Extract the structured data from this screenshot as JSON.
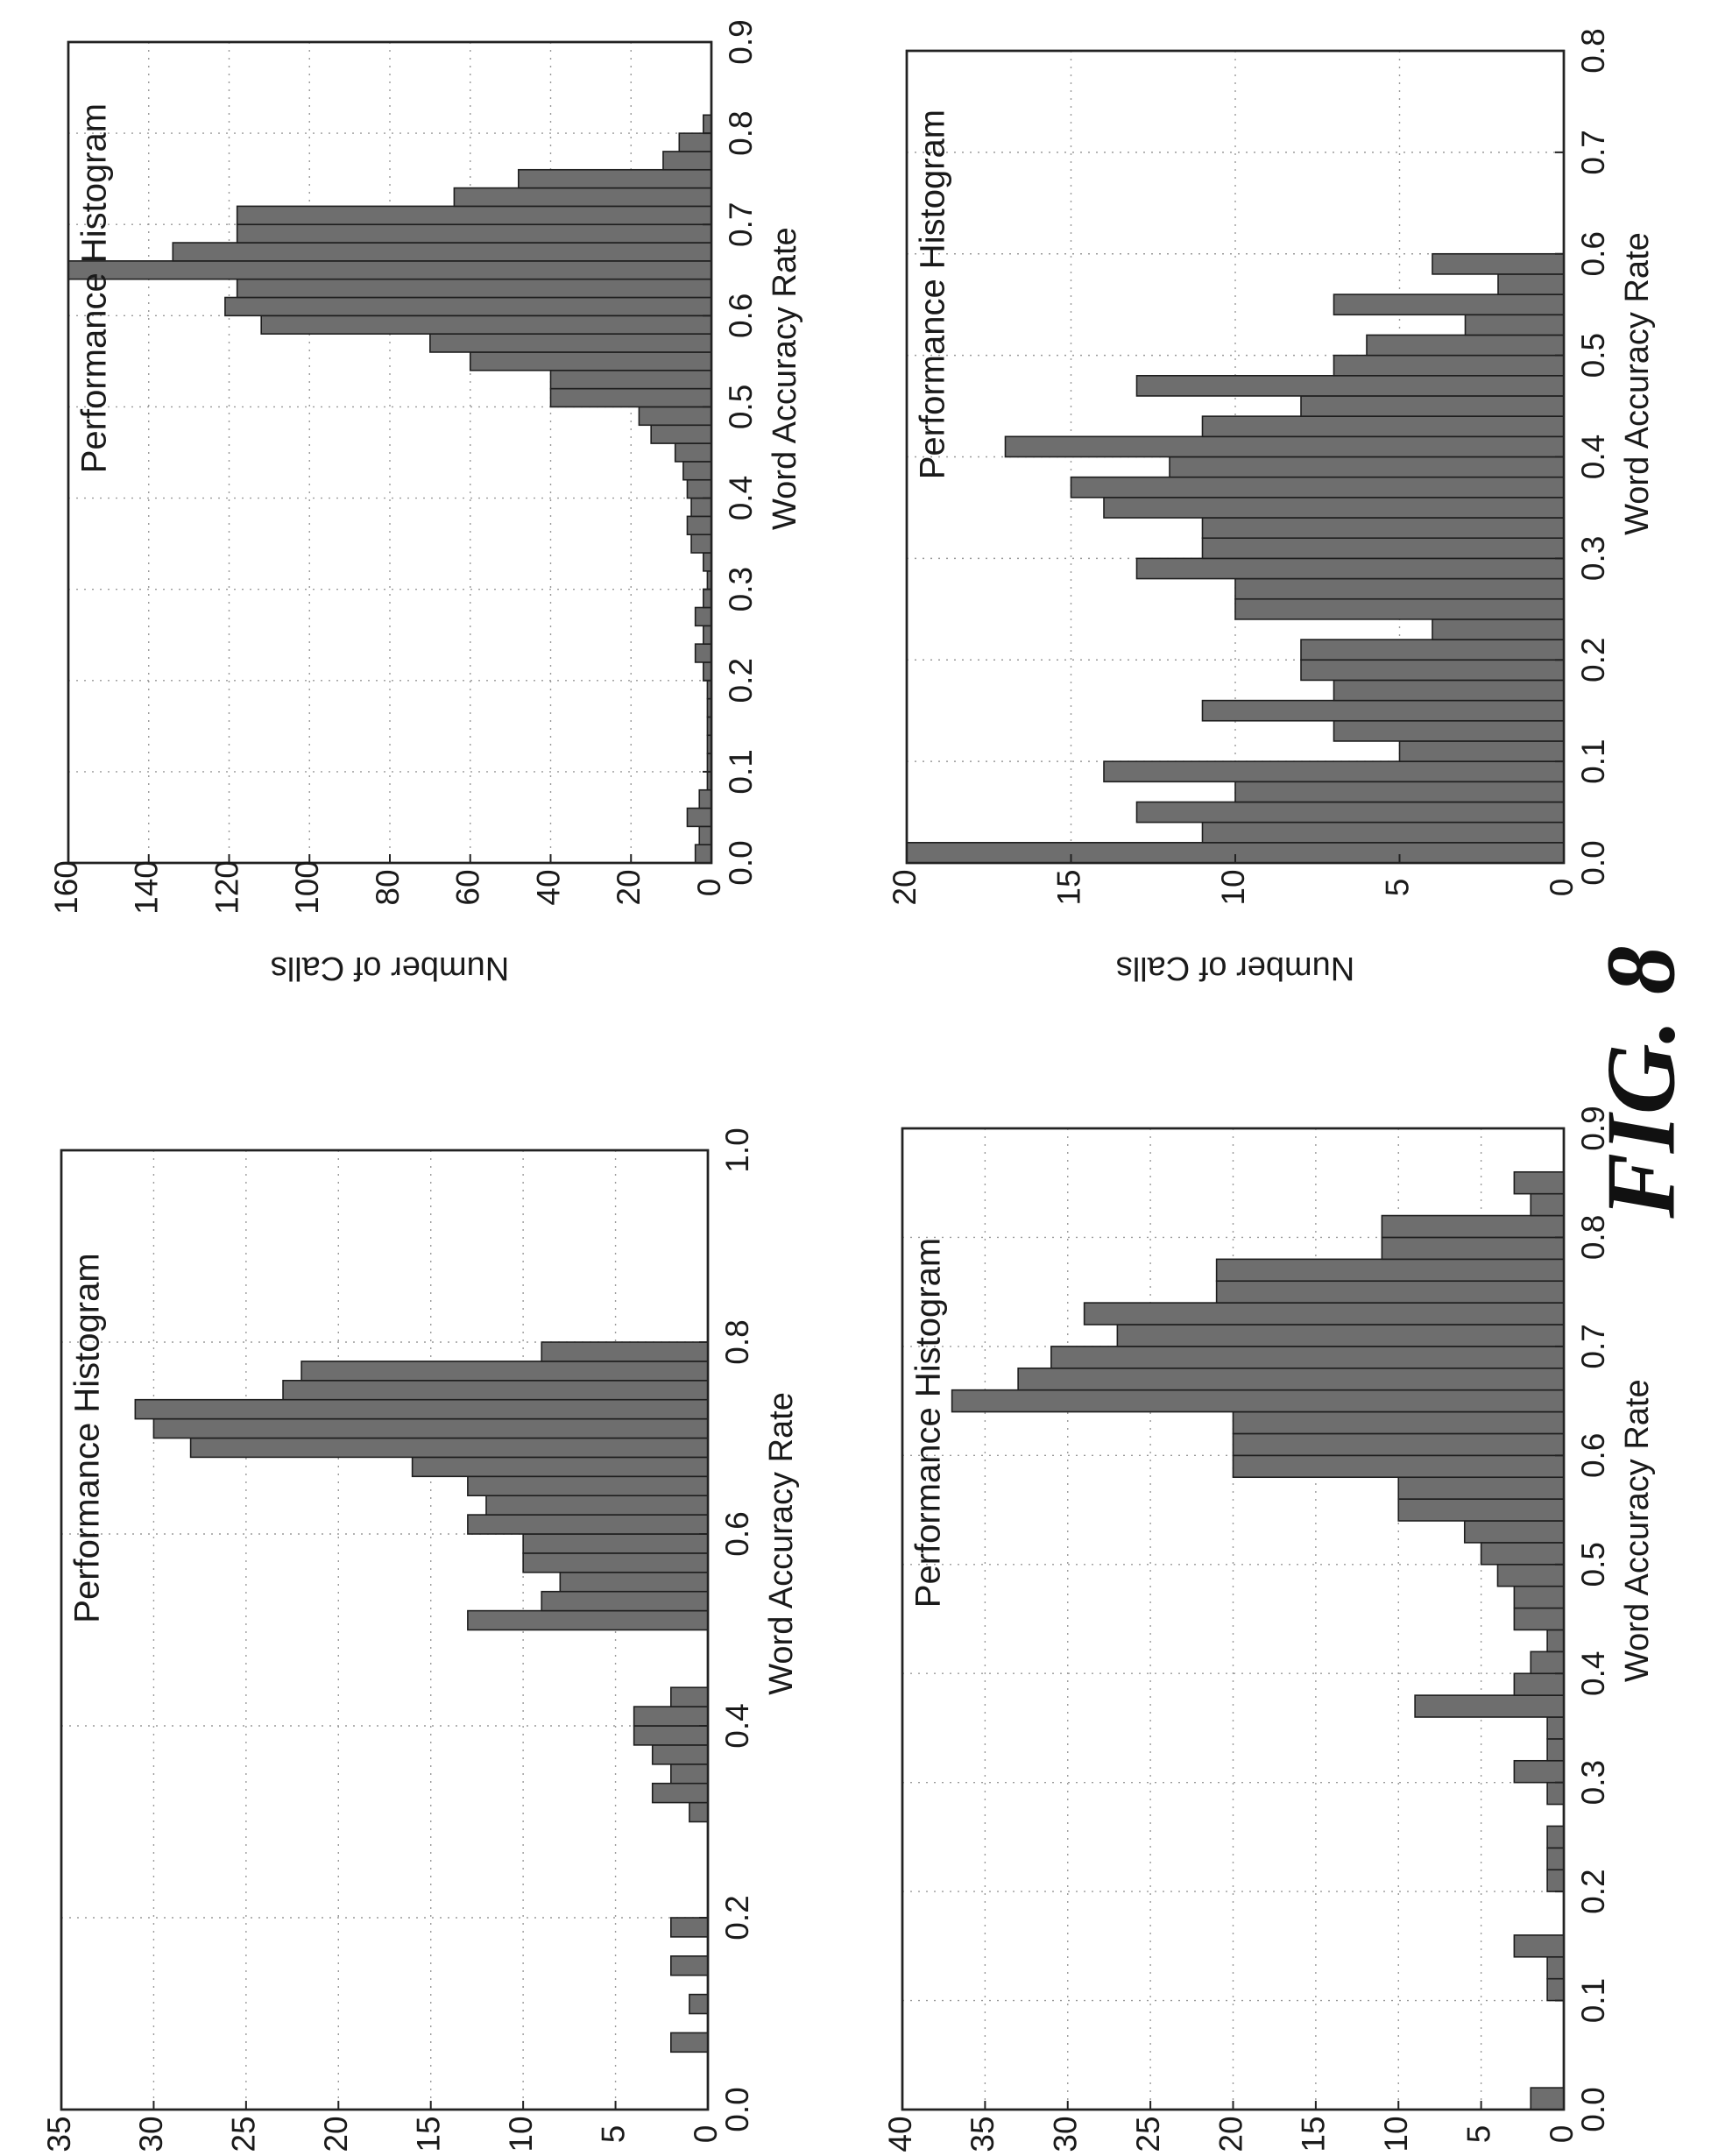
{
  "figure_label": "FIG. 8",
  "chart_data": [
    {
      "type": "bar",
      "title": "Performance Histogram",
      "xlabel": "Word Accuracy Rate",
      "ylabel": "Number of Calls",
      "xlim": [
        0.0,
        1.0
      ],
      "ylim": [
        0,
        35
      ],
      "xticks": [
        "0.0",
        "0.2",
        "0.4",
        "0.6",
        "0.8",
        "1.0"
      ],
      "yticks": [
        "0",
        "5",
        "10",
        "15",
        "20",
        "25",
        "30",
        "35"
      ],
      "xtick_values": [
        0.0,
        0.2,
        0.4,
        0.6,
        0.8,
        1.0
      ],
      "ytick_values": [
        0,
        5,
        10,
        15,
        20,
        25,
        30,
        35
      ],
      "grid": true,
      "bin_width": 0.02,
      "bin_starts": [
        0.06,
        0.08,
        0.1,
        0.12,
        0.14,
        0.16,
        0.18,
        0.2,
        0.22,
        0.24,
        0.26,
        0.28,
        0.3,
        0.32,
        0.34,
        0.36,
        0.38,
        0.4,
        0.42,
        0.44,
        0.46,
        0.48,
        0.5,
        0.52,
        0.54,
        0.56,
        0.58,
        0.6,
        0.62,
        0.64,
        0.66,
        0.68,
        0.7,
        0.72,
        0.74,
        0.76,
        0.78,
        0.8,
        0.82,
        0.84,
        0.86,
        0.88
      ],
      "values": [
        2,
        0,
        1,
        0,
        2,
        0,
        2,
        0,
        0,
        0,
        0,
        0,
        1,
        3,
        2,
        3,
        4,
        4,
        2,
        0,
        0,
        0,
        13,
        9,
        8,
        10,
        10,
        13,
        12,
        13,
        16,
        28,
        30,
        31,
        23,
        22,
        9,
        0,
        0,
        0,
        0,
        0
      ]
    },
    {
      "type": "bar",
      "title": "Performance Histogram",
      "xlabel": "Word Accuracy Rate",
      "ylabel": "Number of Calls",
      "xlim": [
        0.0,
        0.9
      ],
      "ylim": [
        0,
        160
      ],
      "xticks": [
        "0.0",
        "0.1",
        "0.2",
        "0.3",
        "0.4",
        "0.5",
        "0.6",
        "0.7",
        "0.8",
        "0.9"
      ],
      "yticks": [
        "0",
        "20",
        "40",
        "60",
        "80",
        "100",
        "120",
        "140",
        "160"
      ],
      "xtick_values": [
        0.0,
        0.1,
        0.2,
        0.3,
        0.4,
        0.5,
        0.6,
        0.7,
        0.8,
        0.9
      ],
      "ytick_values": [
        0,
        20,
        40,
        60,
        80,
        100,
        120,
        140,
        160
      ],
      "grid": true,
      "bin_width": 0.02,
      "bin_starts": [
        0.0,
        0.02,
        0.04,
        0.06,
        0.08,
        0.1,
        0.12,
        0.14,
        0.16,
        0.18,
        0.2,
        0.22,
        0.24,
        0.26,
        0.28,
        0.3,
        0.32,
        0.34,
        0.36,
        0.38,
        0.4,
        0.42,
        0.44,
        0.46,
        0.48,
        0.5,
        0.52,
        0.54,
        0.56,
        0.58,
        0.6,
        0.62,
        0.64,
        0.66,
        0.68,
        0.7,
        0.72,
        0.74,
        0.76,
        0.78,
        0.8,
        0.82,
        0.84,
        0.86,
        0.88
      ],
      "values": [
        4,
        3,
        6,
        3,
        1,
        1,
        1,
        1,
        1,
        1,
        2,
        4,
        2,
        4,
        2,
        1,
        2,
        5,
        6,
        5,
        6,
        7,
        9,
        15,
        18,
        40,
        40,
        60,
        70,
        112,
        121,
        118,
        160,
        134,
        118,
        118,
        64,
        48,
        12,
        8,
        2,
        0,
        0,
        0,
        0
      ]
    },
    {
      "type": "bar",
      "title": "Performance Histogram",
      "xlabel": "Word Accuracy Rate",
      "ylabel": "Number of Calls",
      "xlim": [
        0.0,
        0.9
      ],
      "ylim": [
        0,
        40
      ],
      "xticks": [
        "0.0",
        "0.1",
        "0.2",
        "0.3",
        "0.4",
        "0.5",
        "0.6",
        "0.7",
        "0.8",
        "0.9"
      ],
      "yticks": [
        "0",
        "5",
        "10",
        "15",
        "20",
        "25",
        "30",
        "35",
        "40"
      ],
      "xtick_values": [
        0.0,
        0.1,
        0.2,
        0.3,
        0.4,
        0.5,
        0.6,
        0.7,
        0.8,
        0.9
      ],
      "ytick_values": [
        0,
        5,
        10,
        15,
        20,
        25,
        30,
        35,
        40
      ],
      "grid": true,
      "bin_width": 0.02,
      "bin_starts": [
        0.0,
        0.02,
        0.04,
        0.06,
        0.08,
        0.1,
        0.12,
        0.14,
        0.16,
        0.18,
        0.2,
        0.22,
        0.24,
        0.26,
        0.28,
        0.3,
        0.32,
        0.34,
        0.36,
        0.38,
        0.4,
        0.42,
        0.44,
        0.46,
        0.48,
        0.5,
        0.52,
        0.54,
        0.56,
        0.58,
        0.6,
        0.62,
        0.64,
        0.66,
        0.68,
        0.7,
        0.72,
        0.74,
        0.76,
        0.78,
        0.8,
        0.82,
        0.84,
        0.86,
        0.88
      ],
      "values": [
        2,
        0,
        0,
        0,
        0,
        1,
        1,
        3,
        0,
        0,
        1,
        1,
        1,
        0,
        1,
        3,
        1,
        1,
        9,
        3,
        2,
        1,
        3,
        3,
        4,
        5,
        6,
        10,
        10,
        20,
        20,
        20,
        37,
        33,
        31,
        27,
        29,
        21,
        21,
        11,
        11,
        2,
        3,
        0,
        0
      ]
    },
    {
      "type": "bar",
      "title": "Performance Histogram",
      "xlabel": "Word Accuracy Rate",
      "ylabel": "Number of Calls",
      "xlim": [
        0.0,
        0.8
      ],
      "ylim": [
        0,
        20
      ],
      "xticks": [
        "0.0",
        "0.1",
        "0.2",
        "0.3",
        "0.4",
        "0.5",
        "0.6",
        "0.7",
        "0.8"
      ],
      "yticks": [
        "0",
        "5",
        "10",
        "15",
        "20"
      ],
      "xtick_values": [
        0.0,
        0.1,
        0.2,
        0.3,
        0.4,
        0.5,
        0.6,
        0.7,
        0.8
      ],
      "ytick_values": [
        0,
        5,
        10,
        15,
        20
      ],
      "grid": true,
      "bin_width": 0.02,
      "bin_starts": [
        0.0,
        0.02,
        0.04,
        0.06,
        0.08,
        0.1,
        0.12,
        0.14,
        0.16,
        0.18,
        0.2,
        0.22,
        0.24,
        0.26,
        0.28,
        0.3,
        0.32,
        0.34,
        0.36,
        0.38,
        0.4,
        0.42,
        0.44,
        0.46,
        0.48,
        0.5,
        0.52,
        0.54,
        0.56,
        0.58,
        0.6,
        0.62,
        0.64,
        0.66,
        0.68,
        0.7,
        0.72,
        0.74,
        0.76,
        0.78
      ],
      "values": [
        20,
        11,
        13,
        10,
        14,
        5,
        7,
        11,
        7,
        8,
        8,
        4,
        10,
        10,
        13,
        11,
        11,
        14,
        15,
        12,
        17,
        11,
        8,
        13,
        7,
        6,
        3,
        7,
        2,
        4
      ]
    }
  ]
}
